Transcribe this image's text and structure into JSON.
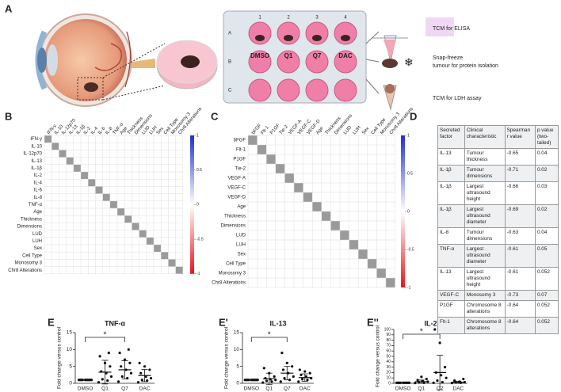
{
  "panel_a": {
    "label": "A",
    "plate_cols": [
      "1",
      "2",
      "3",
      "4"
    ],
    "plate_rows": [
      "A",
      "B",
      "C"
    ],
    "treatments": [
      "DMSO",
      "Q1",
      "Q7",
      "DAC"
    ],
    "outputs": [
      "TCM for ELISA",
      "Snap-freeze",
      "tumour for protein isolation",
      "TCM for LDH assay"
    ]
  },
  "panel_b": {
    "label": "B",
    "variables": [
      "IFN-γ",
      "IL-10",
      "IL-12p70",
      "IL-13",
      "IL-1β",
      "IL-2",
      "IL-4",
      "IL-6",
      "IL-8",
      "TNF-α",
      "Age",
      "Thickness",
      "Dimensions",
      "LUD",
      "LUH",
      "Sex",
      "Cell Type",
      "Monosomy 3",
      "Chr8 Alterations"
    ],
    "colorbar_ticks": [
      1,
      0.5,
      0,
      -0.5,
      -1
    ]
  },
  "panel_c": {
    "label": "C",
    "variables": [
      "bFGF",
      "Flt-1",
      "P1GF",
      "Tie-2",
      "VEGF-A",
      "VEGF-C",
      "VEGF-D",
      "Age",
      "Thickness",
      "Dimensions",
      "LUD",
      "LUH",
      "Sex",
      "Cell Type",
      "Monosomy 3",
      "Chr8 Alterations"
    ],
    "colorbar_ticks": [
      1,
      0.5,
      0,
      -0.5,
      -1
    ]
  },
  "panel_d": {
    "label": "D",
    "header": [
      "Secreted factor",
      "Clinical characteristic",
      "Spearman r value",
      "p value (two-tailed)"
    ],
    "rows": [
      [
        "IL-13",
        "Tumour thickness",
        "-0.65",
        "0.04"
      ],
      [
        "IL-1β",
        "Tumour dimensions",
        "-0.71",
        "0.02"
      ],
      [
        "IL-1β",
        "Largest ultrasound height",
        "-0.66",
        "0.03"
      ],
      [
        "IL-1β",
        "Largest ultrasound diameter",
        "-0.69",
        "0.02"
      ],
      [
        "IL-8",
        "Tumour dimensions",
        "-0.63",
        "0.04"
      ],
      [
        "TNF-α",
        "Largest ultrasound diameter",
        "-0.61",
        "0.05"
      ],
      [
        "IL-13",
        "Largest ultrasound height",
        "-0.61",
        "0.052"
      ],
      [
        "VEGF-C",
        "Monosomy 3",
        "-0.73",
        "0.07"
      ],
      [
        "P1GF",
        "Chromosome 8 alterations",
        "-0.64",
        "0.052"
      ],
      [
        "Flt-1",
        "Chromosome 8 alterations",
        "-0.64",
        "0.052"
      ]
    ]
  },
  "chart_data": [
    {
      "type": "dot",
      "label": "E",
      "title": "TNF-α",
      "ylabel": "Fold change versus control",
      "categories": [
        "DMSO",
        "Q1",
        "Q7",
        "DAC"
      ],
      "color": "#111",
      "mean": [
        1,
        3.3,
        4,
        2.3
      ],
      "error": [
        0.05,
        3.5,
        2.7,
        1.8
      ],
      "points": [
        [
          1,
          1,
          1,
          1,
          1,
          1,
          1,
          1,
          1,
          1
        ],
        [
          0.3,
          0.8,
          1.2,
          2,
          3,
          3.5,
          5,
          6,
          8,
          9
        ],
        [
          0.5,
          1.5,
          2,
          3,
          4,
          5,
          6,
          7,
          9,
          10
        ],
        [
          0.3,
          0.8,
          1,
          1.5,
          2,
          3,
          4,
          5,
          6
        ]
      ],
      "ylim": [
        0,
        15
      ],
      "yticks": [
        0,
        5,
        10,
        15
      ],
      "significance": {
        "from": 0,
        "to": 2,
        "label": "*"
      }
    },
    {
      "type": "dot",
      "label": "E'",
      "title": "IL-13",
      "ylabel": "Fold change versus control",
      "categories": [
        "DMSO",
        "Q1",
        "Q7",
        "DAC"
      ],
      "color": "#111",
      "mean": [
        1,
        1.3,
        3,
        1.7
      ],
      "error": [
        0.05,
        1.7,
        2,
        1.1
      ],
      "points": [
        [
          1,
          1,
          1,
          1,
          1,
          1,
          1,
          1,
          1,
          1
        ],
        [
          0.2,
          0.5,
          0.7,
          1,
          1.2,
          1.5,
          2,
          3,
          4.5
        ],
        [
          0.5,
          1,
          1.5,
          2,
          3,
          4,
          5,
          6,
          9
        ],
        [
          0.5,
          1,
          1.2,
          1.5,
          2,
          2.5,
          3,
          3.5,
          4
        ]
      ],
      "ylim": [
        0,
        15
      ],
      "yticks": [
        0,
        5,
        10,
        15
      ],
      "significance": {
        "from": 0,
        "to": 2,
        "label": "*"
      }
    },
    {
      "type": "dot",
      "label": "E''",
      "title": "IL-2",
      "ylabel": "Fold change versus control",
      "categories": [
        "DMSO",
        "Q1",
        "Q7",
        "DAC"
      ],
      "color": "#111",
      "mean": [
        1,
        3,
        20,
        2
      ],
      "error": [
        0.1,
        3,
        32,
        2
      ],
      "points": [
        [
          1,
          1,
          1,
          1,
          1,
          1,
          1,
          1,
          1,
          1
        ],
        [
          0.5,
          1,
          2,
          3,
          4,
          6,
          8,
          12
        ],
        [
          1,
          2,
          5,
          10,
          15,
          20,
          30,
          75,
          100
        ],
        [
          0.5,
          1,
          1.5,
          2,
          3,
          5,
          8
        ]
      ],
      "ylim": [
        0,
        100
      ],
      "yticks": [
        0,
        10,
        20,
        30,
        40,
        50,
        60,
        70,
        80,
        90,
        100
      ],
      "significance": {
        "from": 0,
        "to": 2,
        "label": "*"
      }
    }
  ]
}
